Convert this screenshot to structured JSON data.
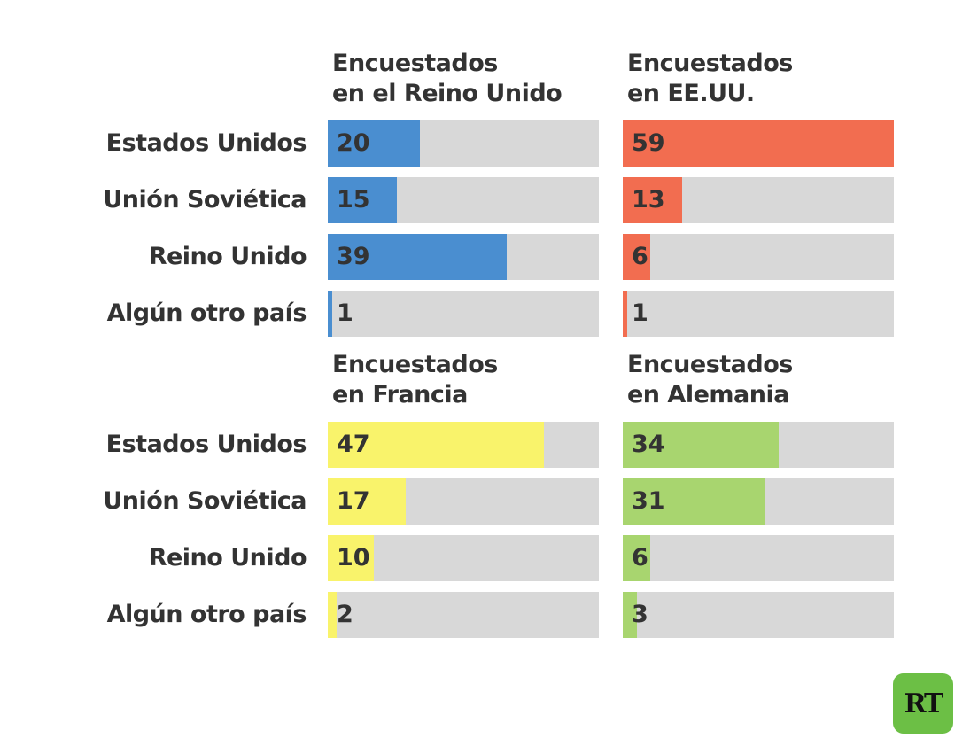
{
  "chart_data": {
    "type": "bar",
    "orientation": "horizontal",
    "max_value": 59,
    "categories": [
      "Estados Unidos",
      "Unión Soviética",
      "Reino Unido",
      "Algún otro país"
    ],
    "panels": [
      {
        "title_line1": "Encuestados",
        "title_line2": "en el Reino Unido",
        "color": "#4a8ed0",
        "values": [
          20,
          15,
          39,
          1
        ]
      },
      {
        "title_line1": "Encuestados",
        "title_line2": "en EE.UU.",
        "color": "#f26d50",
        "values": [
          59,
          13,
          6,
          1
        ]
      },
      {
        "title_line1": "Encuestados",
        "title_line2": "en Francia",
        "color": "#f9f36b",
        "values": [
          47,
          17,
          10,
          2
        ]
      },
      {
        "title_line1": "Encuestados",
        "title_line2": "en Alemania",
        "color": "#a8d56f",
        "values": [
          34,
          31,
          6,
          3
        ]
      }
    ]
  },
  "logo": {
    "text": "RT",
    "color": "#6cbf45"
  }
}
